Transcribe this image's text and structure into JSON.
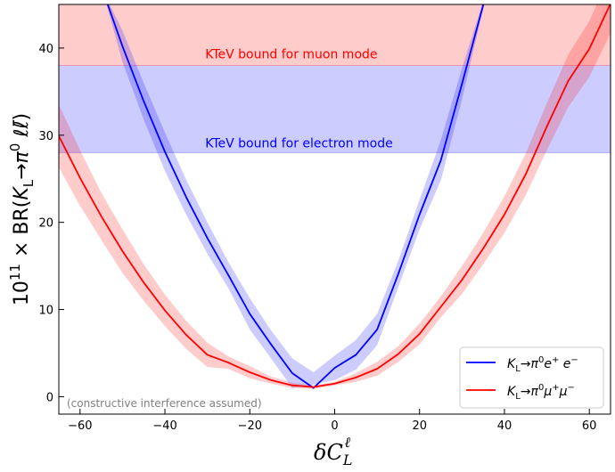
{
  "chart_data": {
    "type": "line",
    "xlabel": "δC_L^ℓ",
    "ylabel": "10^11 × BR(K_L→π^0 ℓℓ̄)",
    "xlim": [
      -65,
      65
    ],
    "ylim": [
      -2,
      45
    ],
    "x_ticks": [
      -60,
      -40,
      -20,
      0,
      20,
      40,
      60
    ],
    "y_ticks": [
      0,
      10,
      20,
      30,
      40
    ],
    "x_tick_labels": [
      "−60",
      "−40",
      "−20",
      "0",
      "20",
      "40",
      "60"
    ],
    "y_tick_labels": [
      "0",
      "10",
      "20",
      "30",
      "40"
    ],
    "bounds": [
      {
        "name": "KTeV bound for muon mode",
        "y_min": 38.0,
        "y_max": 45,
        "color": "#ff0000",
        "label_x": -30.5,
        "label_y": 38.8
      },
      {
        "name": "KTeV bound for electron mode",
        "y_min": 28.0,
        "y_max": 38.0,
        "color": "#0000ff",
        "label_x": -30.5,
        "label_y": 28.6
      }
    ],
    "series": [
      {
        "name": "K_L→π^0 e^+ e^−",
        "color": "#0000ff",
        "x": [
          -53.7,
          -50,
          -45,
          -40,
          -35,
          -30,
          -25,
          -20,
          -15,
          -10,
          -5,
          0,
          5,
          10,
          15,
          20,
          25,
          30,
          35.2
        ],
        "y": [
          45.3,
          40.2,
          33.9,
          28.1,
          22.9,
          18.2,
          13.9,
          9.5,
          6.0,
          2.7,
          1.0,
          3.3,
          4.8,
          7.7,
          14.1,
          20.9,
          27.1,
          35.9,
          45.3
        ],
        "upper": [
          45.7,
          42.0,
          36.0,
          30.3,
          24.9,
          20.0,
          15.4,
          11.3,
          7.6,
          4.4,
          2.8,
          4.7,
          6.5,
          9.5,
          15.6,
          22.6,
          29.4,
          37.7,
          45.7
        ],
        "lower": [
          44.9,
          38.4,
          31.8,
          25.9,
          20.9,
          16.4,
          12.4,
          7.7,
          4.4,
          1.0,
          1.4,
          1.9,
          3.1,
          5.9,
          12.6,
          19.2,
          24.8,
          34.1,
          44.9
        ]
      },
      {
        "name": "K_L→π^0 μ^+ μ^−",
        "color": "#ff0000",
        "x": [
          -65,
          -60,
          -55,
          -50,
          -45,
          -40,
          -35,
          -30,
          -25,
          -20,
          -15,
          -10,
          -5,
          0,
          5,
          10,
          15,
          20,
          25,
          30,
          35,
          40,
          45,
          50,
          55,
          60,
          65
        ],
        "y": [
          29.9,
          25.1,
          20.7,
          16.7,
          13.1,
          9.9,
          7.1,
          4.8,
          3.9,
          2.8,
          1.9,
          1.3,
          1.1,
          1.5,
          2.2,
          3.2,
          4.9,
          7.2,
          10.3,
          13.4,
          17.0,
          20.9,
          25.5,
          31.0,
          36.2,
          39.9,
          45.1
        ],
        "upper": [
          33.5,
          28.3,
          23.4,
          19.2,
          15.2,
          11.7,
          8.7,
          6.2,
          4.6,
          3.5,
          2.3,
          1.6,
          1.3,
          1.7,
          2.7,
          4.0,
          5.8,
          8.4,
          11.5,
          15.0,
          18.8,
          23.0,
          27.9,
          33.7,
          39.2,
          43.1,
          48.5
        ],
        "lower": [
          26.3,
          21.9,
          18.0,
          14.2,
          11.0,
          8.1,
          5.5,
          3.4,
          3.2,
          2.1,
          1.5,
          1.0,
          0.9,
          1.3,
          1.7,
          2.4,
          4.0,
          6.0,
          9.1,
          11.8,
          15.2,
          18.8,
          23.1,
          28.3,
          33.2,
          36.7,
          41.7
        ]
      }
    ],
    "legend": {
      "position": "bottom-right",
      "entries": [
        "K_L→π^0 e^+ e^−",
        "K_L→π^0 μ^+ μ^−"
      ]
    },
    "annotation": "(constructive interference assumed)",
    "grid": false
  }
}
